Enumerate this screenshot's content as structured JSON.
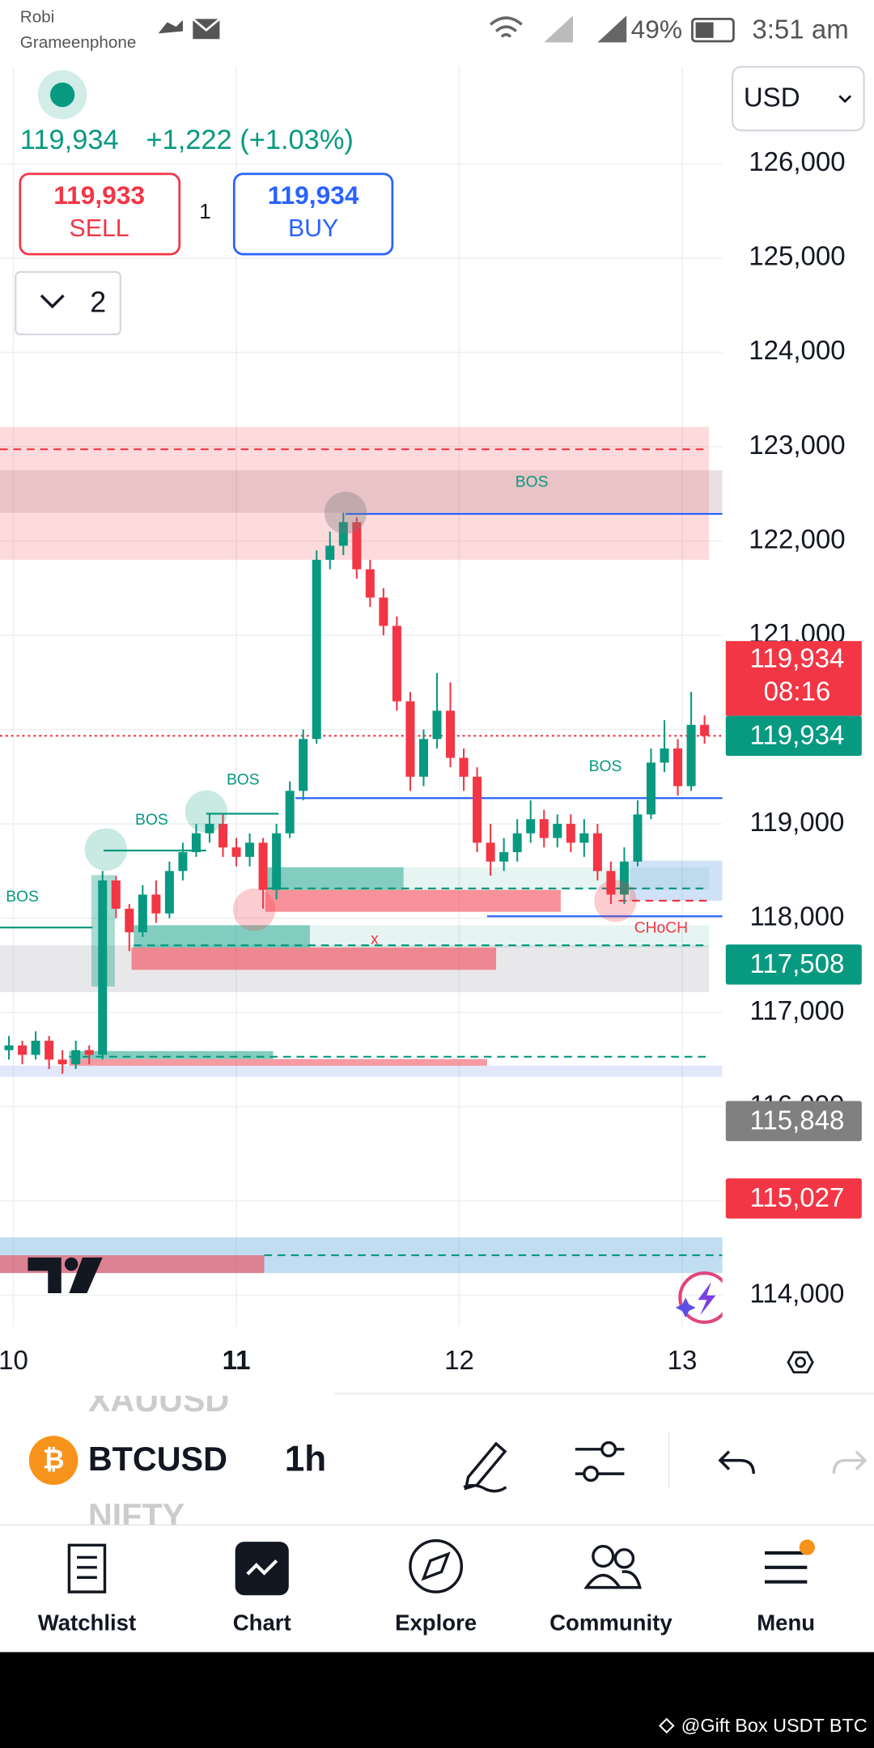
{
  "status_bar": {
    "carrier1": "Robi",
    "carrier2": "Grameenphone",
    "battery": "49%",
    "time": "3:51 am"
  },
  "header": {
    "last": "119,934",
    "change": "+1,222 (+1.03%)",
    "sell_price": "119,933",
    "sell": "SELL",
    "quantity": "1",
    "buy_price": "119,934",
    "buy": "BUY",
    "layers": "2",
    "currency": "USD"
  },
  "chart_data": {
    "type": "candlestick",
    "up_color": "#089981",
    "down_color": "#f23645",
    "xlim": [
      9.94,
      13.18
    ],
    "xticks": [
      10,
      11,
      12,
      13
    ],
    "ylim": [
      113500,
      127000
    ],
    "yticks": [
      {
        "value": 114000,
        "label": "114,000"
      },
      {
        "value": 115000,
        "label": "115,000"
      },
      {
        "value": 116000,
        "label": "116,000"
      },
      {
        "value": 117000,
        "label": "117,000"
      },
      {
        "value": 118000,
        "label": "118,000"
      },
      {
        "value": 119000,
        "label": "119,000"
      },
      {
        "value": 120000,
        "label": "120,000"
      },
      {
        "value": 121000,
        "label": "121,000"
      },
      {
        "value": 122000,
        "label": "122,000"
      },
      {
        "value": 123000,
        "label": "123,000"
      },
      {
        "value": 124000,
        "label": "124,000"
      },
      {
        "value": 125000,
        "label": "125,000"
      },
      {
        "value": 126000,
        "label": "126,000"
      }
    ],
    "grid": true,
    "x": [
      9.98,
      10.04,
      10.1,
      10.16,
      10.22,
      10.28,
      10.34,
      10.4,
      10.46,
      10.52,
      10.58,
      10.64,
      10.7,
      10.76,
      10.82,
      10.88,
      10.94,
      11,
      11.06,
      11.12,
      11.18,
      11.24,
      11.3,
      11.36,
      11.42,
      11.48,
      11.54,
      11.6,
      11.66,
      11.72,
      11.78,
      11.84,
      11.9,
      11.96,
      12.02,
      12.08,
      12.14,
      12.2,
      12.26,
      12.32,
      12.38,
      12.44,
      12.5,
      12.56,
      12.62,
      12.68,
      12.74,
      12.8,
      12.86,
      12.92,
      12.98,
      13.04,
      13.1
    ],
    "open": [
      116600,
      116650,
      116550,
      116700,
      116500,
      116450,
      116600,
      116550,
      118400,
      118100,
      117850,
      118250,
      118050,
      118500,
      118700,
      118900,
      119000,
      118750,
      118650,
      118800,
      118300,
      118900,
      119350,
      119900,
      121800,
      121950,
      122200,
      121700,
      121400,
      121100,
      120300,
      119500,
      119900,
      120200,
      119700,
      119500,
      118800,
      118600,
      118700,
      118900,
      119050,
      118850,
      119000,
      118800,
      118900,
      118500,
      118250,
      118600,
      119100,
      119650,
      119800,
      119400,
      120050
    ],
    "high": [
      116750,
      116700,
      116800,
      116750,
      116600,
      116700,
      116650,
      118500,
      118450,
      118150,
      118350,
      118400,
      118600,
      118800,
      119000,
      119100,
      119100,
      118850,
      118900,
      118850,
      119000,
      119450,
      120000,
      121900,
      122100,
      122300,
      122250,
      121800,
      121500,
      121200,
      120400,
      120000,
      120600,
      120500,
      119800,
      119600,
      119000,
      118850,
      119050,
      119250,
      119150,
      119100,
      119100,
      119050,
      119000,
      118600,
      118750,
      119250,
      119800,
      120100,
      119900,
      120400,
      120150
    ],
    "low": [
      116500,
      116450,
      116500,
      116400,
      116350,
      116400,
      116450,
      116500,
      118000,
      117650,
      117800,
      117950,
      118000,
      118400,
      118650,
      118800,
      118650,
      118550,
      118550,
      118100,
      118200,
      118850,
      119250,
      119850,
      121700,
      121850,
      121600,
      121300,
      121000,
      120200,
      119350,
      119400,
      119800,
      119600,
      119350,
      118700,
      118450,
      118500,
      118600,
      118800,
      118750,
      118750,
      118700,
      118650,
      118400,
      118150,
      118150,
      118550,
      119050,
      119550,
      119300,
      119350,
      119850
    ],
    "close": [
      116650,
      116550,
      116700,
      116500,
      116450,
      116600,
      116550,
      118400,
      118100,
      117850,
      118250,
      118050,
      118500,
      118700,
      118900,
      119000,
      118750,
      118650,
      118800,
      118300,
      118900,
      119350,
      119900,
      121800,
      121950,
      122200,
      121700,
      121400,
      121100,
      120300,
      119500,
      119900,
      120200,
      119700,
      119500,
      118800,
      118600,
      118700,
      118900,
      119050,
      118850,
      119000,
      118800,
      118900,
      118500,
      118250,
      118600,
      119100,
      119650,
      119800,
      119400,
      120050,
      119934
    ],
    "zones": [
      {
        "x": [
          9.94,
          13.12
        ],
        "y": [
          121800,
          123210
        ],
        "color": "rgba(242,54,69,0.18)"
      },
      {
        "x": [
          9.94,
          13.18
        ],
        "y": [
          122300,
          122750
        ],
        "color": "rgba(170,110,120,0.22)"
      },
      {
        "x": [
          9.94,
          13.12
        ],
        "y": [
          117215,
          117712
        ],
        "color": "rgba(140,140,150,0.2)"
      },
      {
        "x": [
          11.14,
          11.75
        ],
        "y": [
          118300,
          118540
        ],
        "color": "rgba(8,153,129,0.5)"
      },
      {
        "x": [
          11.75,
          13.12
        ],
        "y": [
          118300,
          118540
        ],
        "color": "rgba(8,153,129,0.1)"
      },
      {
        "x": [
          11.13,
          12.455
        ],
        "y": [
          118067,
          118300
        ],
        "color": "rgba(242,54,69,0.55)"
      },
      {
        "x": [
          10.54,
          11.33
        ],
        "y": [
          117688,
          117925
        ],
        "color": "rgba(8,153,129,0.5)"
      },
      {
        "x": [
          11.33,
          13.12
        ],
        "y": [
          117688,
          117925
        ],
        "color": "rgba(8,153,129,0.1)"
      },
      {
        "x": [
          10.53,
          12.165
        ],
        "y": [
          117452,
          117688
        ],
        "color": "rgba(242,54,69,0.55)"
      },
      {
        "x": [
          10.35,
          10.455
        ],
        "y": [
          117275,
          118457
        ],
        "color": "rgba(8,153,129,0.35)"
      },
      {
        "x": [
          12.765,
          13.18
        ],
        "y": [
          118185,
          118610
        ],
        "color": "rgba(100,160,230,0.3)"
      },
      {
        "x": [
          9.94,
          13.18
        ],
        "y": [
          116317,
          116435
        ],
        "color": "rgba(100,140,230,0.2)"
      },
      {
        "x": [
          10.25,
          11.165
        ],
        "y": [
          116506,
          116590
        ],
        "color": "rgba(8,153,129,0.5)"
      },
      {
        "x": [
          10.25,
          12.125
        ],
        "y": [
          116435,
          116506
        ],
        "color": "rgba(242,54,69,0.5)"
      },
      {
        "x": [
          9.94,
          13.18
        ],
        "y": [
          114236,
          114614
        ],
        "color": "rgba(100,170,220,0.4)"
      },
      {
        "x": [
          9.94,
          11.125
        ],
        "y": [
          114236,
          114425
        ],
        "color": "rgba(242,54,69,0.55)"
      }
    ],
    "levels": [
      {
        "value": 122973,
        "x": [
          9.94,
          13.12
        ],
        "color": "#f23645",
        "style": "dashed"
      },
      {
        "value": 122288,
        "x": [
          11.49,
          13.18
        ],
        "color": "#2962ff",
        "style": "solid"
      },
      {
        "value": 119273,
        "x": [
          11.265,
          13.18
        ],
        "color": "#2962ff",
        "style": "solid"
      },
      {
        "value": 118020,
        "x": [
          12.125,
          13.18
        ],
        "color": "#2962ff",
        "style": "solid"
      },
      {
        "value": 118315,
        "x": [
          11.14,
          13.12
        ],
        "color": "#089981",
        "style": "dashed"
      },
      {
        "value": 118185,
        "x": [
          12.715,
          13.12
        ],
        "color": "#f23645",
        "style": "dashed"
      },
      {
        "value": 117712,
        "x": [
          10.54,
          13.12
        ],
        "color": "#089981",
        "style": "dashed"
      },
      {
        "value": 116530,
        "x": [
          10.25,
          13.12
        ],
        "color": "#089981",
        "style": "dashed"
      },
      {
        "value": 114425,
        "x": [
          11.125,
          13.18
        ],
        "color": "#089981",
        "style": "dashed"
      },
      {
        "value": 118717,
        "x": [
          10.405,
          10.865
        ],
        "color": "#089981",
        "style": "solid"
      },
      {
        "value": 119108,
        "x": [
          10.865,
          11.19
        ],
        "color": "#089981",
        "style": "solid"
      },
      {
        "value": 117901,
        "x": [
          9.94,
          10.355
        ],
        "color": "#089981",
        "style": "solid"
      },
      {
        "value": 119934,
        "x": [
          9.94,
          13.18
        ],
        "color": "#f23645",
        "style": "dotted"
      }
    ],
    "price_tags": [
      {
        "value": 119934,
        "label": "119,934",
        "countdown": "08:16",
        "color": "#f23645"
      },
      {
        "value": 119934,
        "label": "119,934",
        "color": "#089981"
      },
      {
        "value": 117508,
        "label": "117,508",
        "color": "#089981"
      },
      {
        "value": 115848,
        "label": "115,848",
        "color": "#808080"
      },
      {
        "value": 115027,
        "label": "115,027",
        "color": "#f23645"
      }
    ],
    "annotations": [
      "BOS",
      "BOS",
      "BOS",
      "BOS",
      "BOS",
      "CHoCH",
      "x"
    ]
  },
  "toolbar": {
    "symbol_prev": "XAUUSD",
    "symbol": "BTCUSD",
    "symbol_next": "NIFTY",
    "interval": "1h"
  },
  "nav": [
    "Watchlist",
    "Chart",
    "Explore",
    "Community",
    "Menu"
  ],
  "footer": "@Gift Box USDT BTC"
}
